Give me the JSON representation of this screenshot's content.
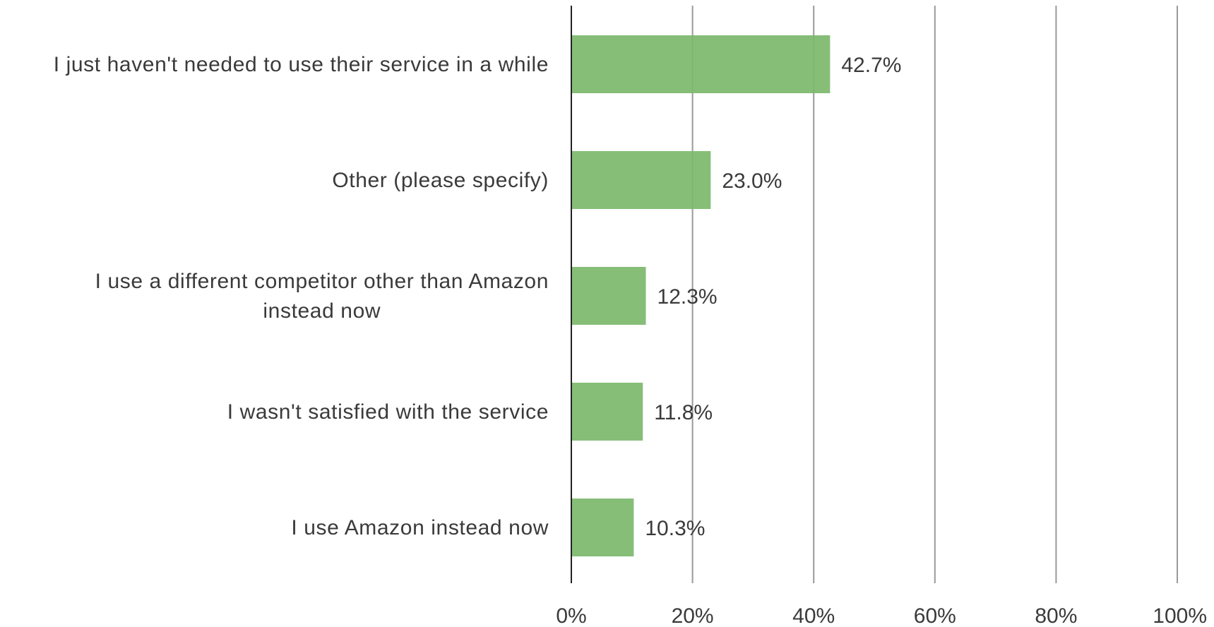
{
  "chart_data": {
    "type": "bar",
    "orientation": "horizontal",
    "categories": [
      "I just haven't needed to use their service in a while",
      "Other (please specify)",
      "I use a different competitor other than Amazon instead now",
      "I wasn't satisfied with the service",
      "I use Amazon instead now"
    ],
    "category_lines": [
      [
        "I just haven't needed to use their service in a while"
      ],
      [
        "Other (please specify)"
      ],
      [
        "I use a different competitor other than Amazon",
        "instead now"
      ],
      [
        "I wasn't satisfied with the service"
      ],
      [
        "I use Amazon instead now"
      ]
    ],
    "values": [
      42.7,
      23.0,
      12.3,
      11.8,
      10.3
    ],
    "value_labels": [
      "42.7%",
      "23.0%",
      "12.3%",
      "11.8%",
      "10.3%"
    ],
    "xlim": [
      0,
      100
    ],
    "xticks": [
      0,
      20,
      40,
      60,
      80,
      100
    ],
    "xtick_labels": [
      "0%",
      "20%",
      "40%",
      "60%",
      "80%",
      "100%"
    ],
    "title": "",
    "xlabel": "",
    "ylabel": "",
    "grid": "vertical",
    "legend": "none",
    "colors": {
      "bar": "#7cb96d",
      "grid": "#9a9a9a",
      "axis": "#222222",
      "text": "#3a3a3a"
    }
  }
}
